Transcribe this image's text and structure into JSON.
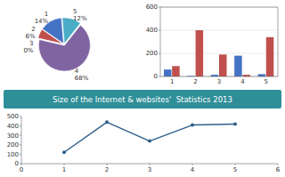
{
  "chart_data": [
    {
      "type": "pie",
      "title": "Size of the Internet & websites'  Statistics 2013",
      "categories": [
        "1",
        "2",
        "3",
        "4",
        "5"
      ],
      "values": [
        14,
        6,
        0,
        68,
        12
      ],
      "value_labels": [
        "14%",
        "6%",
        "0%",
        "68%",
        "12%"
      ],
      "data_labels": true,
      "colors": [
        "#4472c4",
        "#c0504d",
        "#4f6228",
        "#8064a2",
        "#4bacc6"
      ]
    },
    {
      "type": "bar",
      "categories": [
        "1",
        "2",
        "3",
        "4",
        "5"
      ],
      "series": [
        {
          "color": "#4472c4",
          "values": [
            60,
            5,
            15,
            180,
            20
          ]
        },
        {
          "color": "#c0504d",
          "values": [
            90,
            400,
            190,
            15,
            340
          ]
        }
      ],
      "ylim": [
        0,
        600
      ],
      "yticks": [
        0,
        200,
        400,
        600
      ],
      "grid": true
    },
    {
      "type": "line",
      "x": [
        1,
        2,
        3,
        4,
        5
      ],
      "values": [
        120,
        440,
        240,
        410,
        420
      ],
      "color": "#2e5f8a",
      "marker": "circle",
      "xlim": [
        0,
        6
      ],
      "xticks": [
        0,
        1,
        2,
        3,
        4,
        5,
        6
      ],
      "ylim": [
        0,
        500
      ],
      "yticks": [
        0,
        100,
        200,
        300,
        400,
        500
      ],
      "grid": false
    }
  ]
}
